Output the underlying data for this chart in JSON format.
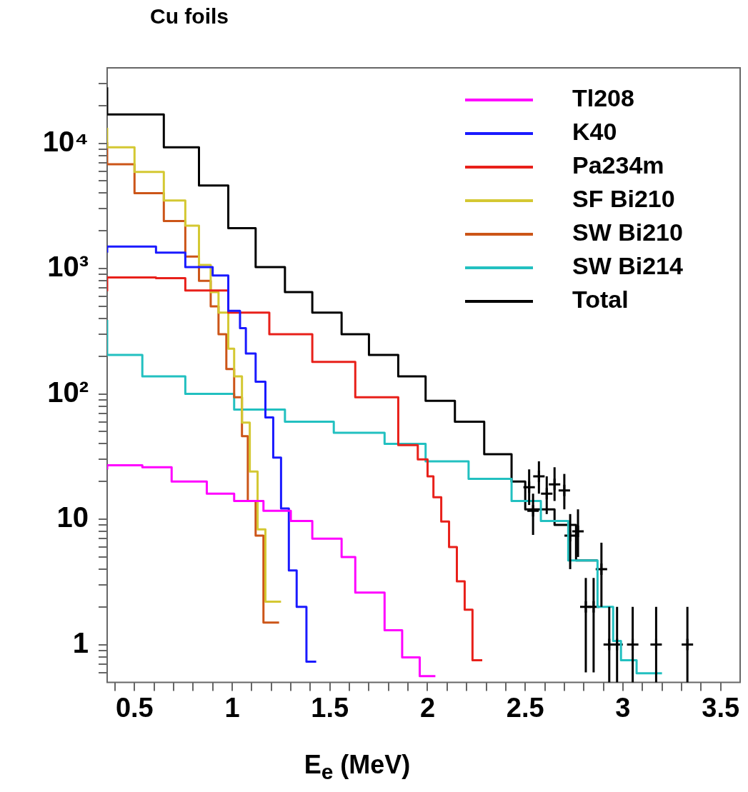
{
  "chart_data": {
    "type": "step",
    "title": "Cu foils",
    "xlabel": "E$_{e}$ (MeV)",
    "log": "y",
    "legend": "top right",
    "xlim": [
      0.36,
      3.6
    ],
    "ylim": [
      0.5,
      40000
    ],
    "xticks": [
      {
        "value": 0.4,
        "label": null
      },
      {
        "value": 0.5,
        "label": "0.5"
      },
      {
        "value": 0.6,
        "label": null
      },
      {
        "value": 0.7,
        "label": null
      },
      {
        "value": 0.8,
        "label": null
      },
      {
        "value": 0.9,
        "label": null
      },
      {
        "value": 1,
        "label": "1"
      },
      {
        "value": 1.1,
        "label": null
      },
      {
        "value": 1.2,
        "label": null
      },
      {
        "value": 1.3,
        "label": null
      },
      {
        "value": 1.4,
        "label": null
      },
      {
        "value": 1.5,
        "label": "1.5"
      },
      {
        "value": 1.6,
        "label": null
      },
      {
        "value": 1.7,
        "label": null
      },
      {
        "value": 1.8,
        "label": null
      },
      {
        "value": 1.9,
        "label": null
      },
      {
        "value": 2,
        "label": "2"
      },
      {
        "value": 2.1,
        "label": null
      },
      {
        "value": 2.2,
        "label": null
      },
      {
        "value": 2.3,
        "label": null
      },
      {
        "value": 2.4,
        "label": null
      },
      {
        "value": 2.5,
        "label": "2.5"
      },
      {
        "value": 2.6,
        "label": null
      },
      {
        "value": 2.7,
        "label": null
      },
      {
        "value": 2.8,
        "label": null
      },
      {
        "value": 2.9,
        "label": null
      },
      {
        "value": 3,
        "label": "3"
      },
      {
        "value": 3.1,
        "label": null
      },
      {
        "value": 3.2,
        "label": null
      },
      {
        "value": 3.3,
        "label": null
      },
      {
        "value": 3.4,
        "label": null
      },
      {
        "value": 3.5,
        "label": "3.5"
      }
    ],
    "yticks": [
      {
        "value": 0.6,
        "label": null
      },
      {
        "value": 0.7,
        "label": null
      },
      {
        "value": 0.8,
        "label": null
      },
      {
        "value": 0.9,
        "label": null
      },
      1,
      {
        "value": 2,
        "label": null
      },
      {
        "value": 3,
        "label": null
      },
      {
        "value": 4,
        "label": null
      },
      {
        "value": 5,
        "label": null
      },
      {
        "value": 6,
        "label": null
      },
      {
        "value": 7,
        "label": null
      },
      {
        "value": 8,
        "label": null
      },
      {
        "value": 9,
        "label": null
      },
      10,
      {
        "value": 20,
        "label": null
      },
      {
        "value": 30,
        "label": null
      },
      {
        "value": 40,
        "label": null
      },
      {
        "value": 50,
        "label": null
      },
      {
        "value": 60,
        "label": null
      },
      {
        "value": 70,
        "label": null
      },
      {
        "value": 80,
        "label": null
      },
      {
        "value": 90,
        "label": null
      },
      {
        "value": 100,
        "label": "10²"
      },
      {
        "value": 200,
        "label": null
      },
      {
        "value": 300,
        "label": null
      },
      {
        "value": 400,
        "label": null
      },
      {
        "value": 500,
        "label": null
      },
      {
        "value": 600,
        "label": null
      },
      {
        "value": 700,
        "label": null
      },
      {
        "value": 800,
        "label": null
      },
      {
        "value": 900,
        "label": null
      },
      {
        "value": 1000,
        "label": "10³"
      },
      {
        "value": 2000,
        "label": null
      },
      {
        "value": 3000,
        "label": null
      },
      {
        "value": 4000,
        "label": null
      },
      {
        "value": 5000,
        "label": null
      },
      {
        "value": 6000,
        "label": null
      },
      {
        "value": 7000,
        "label": null
      },
      {
        "value": 8000,
        "label": null
      },
      {
        "value": 9000,
        "label": null
      },
      {
        "value": 10000,
        "label": "10⁴"
      },
      {
        "value": 20000,
        "label": null
      },
      {
        "value": 30000,
        "label": null
      }
    ],
    "series": [
      {
        "name": "Tl208",
        "color": "#ff00ff",
        "x": [
          0.36,
          0.54,
          0.69,
          0.87,
          1.01,
          1.16,
          1.3,
          1.41,
          1.56,
          1.63,
          1.78,
          1.87,
          1.96,
          2.01,
          2.04
        ],
        "values": [
          25,
          27,
          26,
          20,
          16,
          14,
          11.7,
          9.7,
          7,
          5,
          2.6,
          1.3,
          0.79,
          0.56,
          0.56
        ]
      },
      {
        "name": "K40",
        "color": "#1a1aff",
        "x": [
          0.36,
          0.5,
          0.61,
          0.76,
          0.9,
          0.98,
          1.04,
          1.07,
          1.12,
          1.17,
          1.21,
          1.25,
          1.29,
          1.33,
          1.38,
          1.42,
          1.43
        ],
        "values": [
          1340,
          1500,
          1500,
          1340,
          1030,
          880,
          460,
          335,
          210,
          125,
          65,
          31,
          12.2,
          3.9,
          2,
          0.73,
          0.73
        ]
      },
      {
        "name": "Pa234m",
        "color": "#e8201a",
        "x": [
          0.36,
          0.61,
          0.76,
          0.98,
          1.19,
          1.41,
          1.63,
          1.85,
          1.95,
          2,
          2.03,
          2.07,
          2.11,
          2.15,
          2.19,
          2.23,
          2.27,
          2.28
        ],
        "values": [
          660,
          850,
          840,
          670,
          445,
          300,
          180,
          94,
          39,
          30,
          22,
          15,
          9.6,
          6,
          3.2,
          1.9,
          0.75,
          0.75
        ]
      },
      {
        "name": "SF Bi210",
        "color": "#d4c832",
        "x": [
          0.36,
          0.5,
          0.65,
          0.76,
          0.83,
          0.89,
          0.93,
          0.98,
          1.01,
          1.05,
          1.09,
          1.13,
          1.17,
          1.21,
          1.25
        ],
        "values": [
          13300,
          9300,
          5900,
          3500,
          2200,
          1070,
          650,
          445,
          230,
          138,
          59,
          24,
          8.3,
          2.2,
          2.2
        ]
      },
      {
        "name": "SW Bi210",
        "color": "#cc5518",
        "x": [
          0.36,
          0.5,
          0.65,
          0.76,
          0.83,
          0.89,
          0.93,
          0.97,
          1.01,
          1.05,
          1.08,
          1.12,
          1.16,
          1.2,
          1.24
        ],
        "values": [
          10200,
          6800,
          4000,
          2400,
          1250,
          800,
          500,
          300,
          158,
          94,
          46,
          14,
          7.4,
          1.5,
          1.5
        ]
      },
      {
        "name": "SW Bi214",
        "color": "#22c0c0",
        "x": [
          0.36,
          0.54,
          0.76,
          1.01,
          1.27,
          1.52,
          1.78,
          1.99,
          2.21,
          2.43,
          2.58,
          2.72,
          2.87,
          2.95,
          2.99,
          3.07,
          3.16,
          3.2
        ],
        "values": [
          390,
          205,
          138,
          100,
          75,
          60,
          49,
          40,
          29,
          21,
          14,
          9.7,
          4.7,
          2,
          1.07,
          0.75,
          0.59,
          0.59
        ]
      },
      {
        "name": "Total",
        "color": "#000000",
        "x": [
          0.36,
          0.65,
          0.83,
          0.98,
          1.12,
          1.27,
          1.41,
          1.56,
          1.7,
          1.85,
          1.99,
          2.14,
          2.29,
          2.43,
          2.5,
          2.65,
          2.76,
          2.87
        ],
        "values": [
          28000,
          17000,
          9300,
          4600,
          2100,
          1030,
          650,
          445,
          300,
          205,
          138,
          88,
          60,
          33,
          20,
          12,
          9,
          4.7
        ]
      },
      {
        "type": "scatter",
        "marker": "cross",
        "color": "#000000",
        "x": [
          2.52,
          2.54,
          2.57,
          2.61,
          2.65,
          2.7,
          2.73,
          2.77,
          2.81,
          2.85,
          2.89,
          2.93,
          2.97,
          3.05,
          3.17,
          3.33
        ],
        "values": [
          18,
          11.7,
          22,
          16,
          19,
          17,
          7.4,
          8,
          2,
          2,
          4,
          1,
          1,
          1,
          1,
          1
        ],
        "errors": [
          [
            13,
            25
          ],
          [
            7.5,
            16
          ],
          [
            16,
            29
          ],
          [
            11,
            22
          ],
          [
            14,
            26
          ],
          [
            12,
            23
          ],
          [
            4,
            11
          ],
          [
            5,
            12
          ],
          [
            0.6,
            3.4
          ],
          [
            0.6,
            3.4
          ],
          [
            2,
            6.5
          ],
          [
            0.5,
            2
          ],
          [
            0.5,
            2
          ],
          [
            0.5,
            2
          ],
          [
            0.5,
            2
          ],
          [
            0.5,
            2
          ]
        ]
      }
    ]
  }
}
